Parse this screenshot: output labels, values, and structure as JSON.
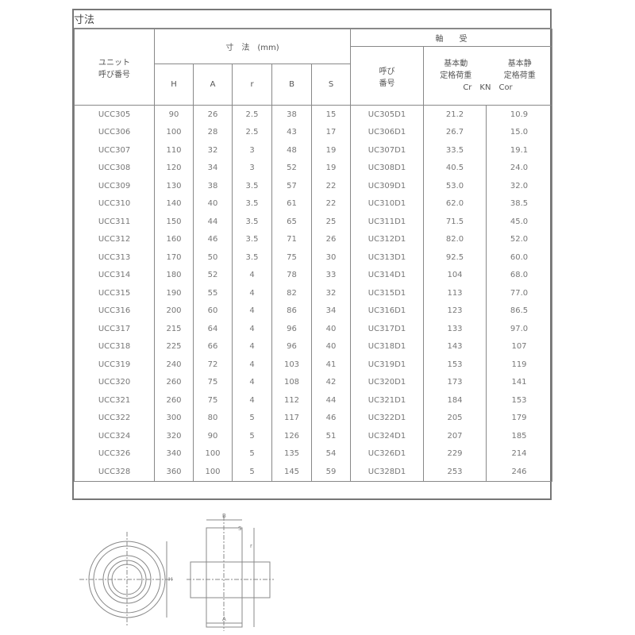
{
  "title": "寸法",
  "header": {
    "unit_no": "ユニット\n呼び番号",
    "dimensions": "寸　法　(mm)",
    "bearing": "軸　　受",
    "bearing_no": "呼び\n番号",
    "cr": "基本動\n定格荷重",
    "cor": "基本静\n定格荷重",
    "cr_unit": "Cr　KN　Cor",
    "cols": [
      "H",
      "A",
      "r",
      "B",
      "S"
    ]
  },
  "rows": [
    [
      "UCC305",
      "90",
      "26",
      "2.5",
      "38",
      "15",
      "UC305D1",
      "21.2",
      "10.9"
    ],
    [
      "UCC306",
      "100",
      "28",
      "2.5",
      "43",
      "17",
      "UC306D1",
      "26.7",
      "15.0"
    ],
    [
      "UCC307",
      "110",
      "32",
      "3",
      "48",
      "19",
      "UC307D1",
      "33.5",
      "19.1"
    ],
    [
      "UCC308",
      "120",
      "34",
      "3",
      "52",
      "19",
      "UC308D1",
      "40.5",
      "24.0"
    ],
    [
      "UCC309",
      "130",
      "38",
      "3.5",
      "57",
      "22",
      "UC309D1",
      "53.0",
      "32.0"
    ],
    [
      "UCC310",
      "140",
      "40",
      "3.5",
      "61",
      "22",
      "UC310D1",
      "62.0",
      "38.5"
    ],
    [
      "UCC311",
      "150",
      "44",
      "3.5",
      "65",
      "25",
      "UC311D1",
      "71.5",
      "45.0"
    ],
    [
      "UCC312",
      "160",
      "46",
      "3.5",
      "71",
      "26",
      "UC312D1",
      "82.0",
      "52.0"
    ],
    [
      "UCC313",
      "170",
      "50",
      "3.5",
      "75",
      "30",
      "UC313D1",
      "92.5",
      "60.0"
    ],
    [
      "UCC314",
      "180",
      "52",
      "4",
      "78",
      "33",
      "UC314D1",
      "104",
      "68.0"
    ],
    [
      "UCC315",
      "190",
      "55",
      "4",
      "82",
      "32",
      "UC315D1",
      "113",
      "77.0"
    ],
    [
      "UCC316",
      "200",
      "60",
      "4",
      "86",
      "34",
      "UC316D1",
      "123",
      "86.5"
    ],
    [
      "UCC317",
      "215",
      "64",
      "4",
      "96",
      "40",
      "UC317D1",
      "133",
      "97.0"
    ],
    [
      "UCC318",
      "225",
      "66",
      "4",
      "96",
      "40",
      "UC318D1",
      "143",
      "107"
    ],
    [
      "UCC319",
      "240",
      "72",
      "4",
      "103",
      "41",
      "UC319D1",
      "153",
      "119"
    ],
    [
      "UCC320",
      "260",
      "75",
      "4",
      "108",
      "42",
      "UC320D1",
      "173",
      "141"
    ],
    [
      "UCC321",
      "260",
      "75",
      "4",
      "112",
      "44",
      "UC321D1",
      "184",
      "153"
    ],
    [
      "UCC322",
      "300",
      "80",
      "5",
      "117",
      "46",
      "UC322D1",
      "205",
      "179"
    ],
    [
      "UCC324",
      "320",
      "90",
      "5",
      "126",
      "51",
      "UC324D1",
      "207",
      "185"
    ],
    [
      "UCC326",
      "340",
      "100",
      "5",
      "135",
      "54",
      "UC326D1",
      "229",
      "214"
    ],
    [
      "UCC328",
      "360",
      "100",
      "5",
      "145",
      "59",
      "UC328D1",
      "253",
      "246"
    ]
  ],
  "drawing": {
    "labels": [
      "B",
      "S",
      "r",
      "H",
      "A"
    ]
  }
}
